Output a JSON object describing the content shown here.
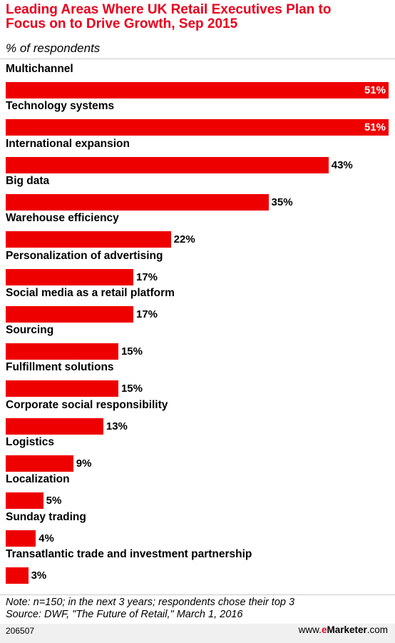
{
  "chart_data": {
    "type": "bar",
    "orientation": "horizontal",
    "title_lines": [
      "Leading Areas Where UK Retail Executives Plan to",
      "Focus on to Drive Growth, Sep 2015"
    ],
    "subtitle": "% of respondents",
    "categories": [
      "Multichannel",
      "Technology systems",
      "International expansion",
      "Big data",
      "Warehouse efficiency",
      "Personalization of advertising",
      "Social media as a retail platform",
      "Sourcing",
      "Fulfillment solutions",
      "Corporate social responsibility",
      "Logistics",
      "Localization",
      "Sunday trading",
      "Transatlantic trade and investment partnership"
    ],
    "values": [
      51,
      51,
      43,
      35,
      22,
      17,
      17,
      15,
      15,
      13,
      9,
      5,
      4,
      3
    ],
    "value_labels": [
      "51%",
      "51%",
      "43%",
      "35%",
      "22%",
      "17%",
      "17%",
      "15%",
      "15%",
      "13%",
      "9%",
      "5%",
      "4%",
      "3%"
    ],
    "xlim": [
      0,
      51
    ],
    "bar_color": "#ee0000",
    "grid": false,
    "legend": "none"
  },
  "notes": [
    "Note: n=150; in the next 3 years; respondents chose their top 3",
    "Source: DWF, \"The Future of Retail,\" March 1, 2016"
  ],
  "footer": {
    "chart_id": "206507",
    "brand_prefix": "www.",
    "brand_e": "e",
    "brand_name": "Marketer",
    "brand_suffix": ".com"
  },
  "colors": {
    "title": "#e8001c",
    "bar": "#ee0000",
    "footer_background": "#f0f0f0"
  }
}
